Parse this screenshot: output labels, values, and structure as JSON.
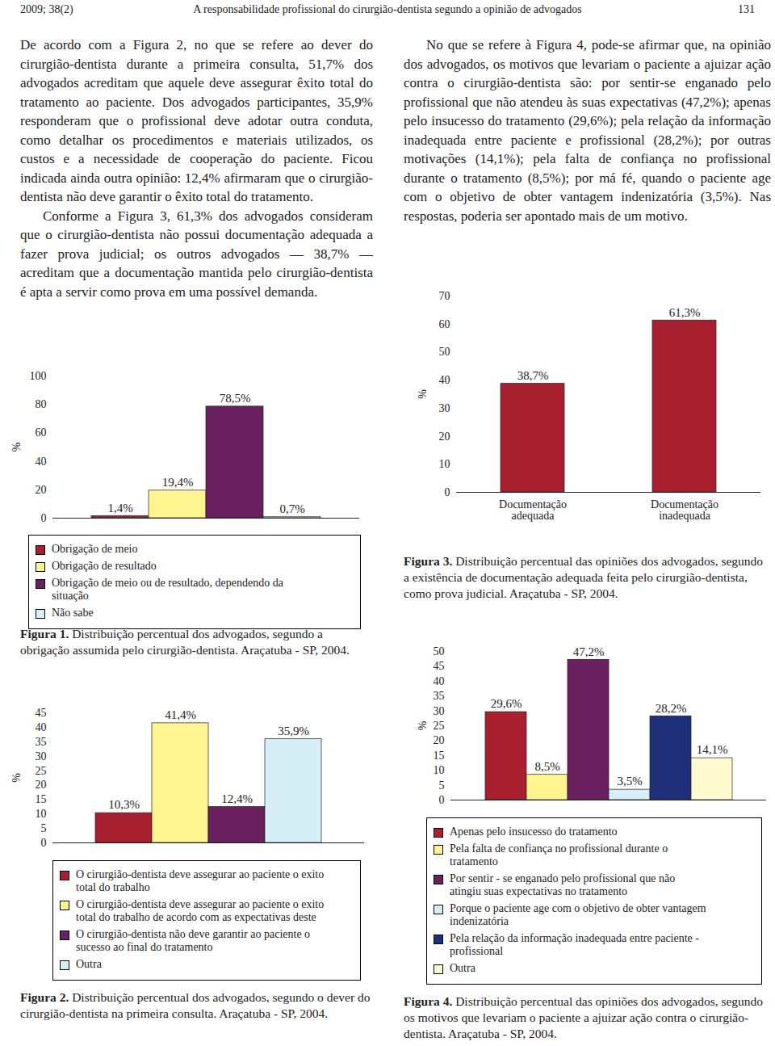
{
  "header": {
    "left": "2009; 38(2)",
    "center": "A responsabilidade profissional do cirurgião-dentista segundo a opinião de advogados",
    "right": "131"
  },
  "text": {
    "left_column": [
      "De acordo com a Figura 2, no que se refere ao dever do cirurgião-dentista durante a primeira consulta, 51,7% dos advogados acreditam que aquele deve assegurar êxito total do tratamento ao paciente. Dos advogados participantes, 35,9% responderam que o profissional deve adotar outra conduta, como detalhar os procedimentos e materiais utilizados, os custos e a necessidade de cooperação do paciente. Ficou indicada ainda outra opinião: 12,4% afirmaram que o cirurgião-dentista não deve garantir o êxito total do tratamento.",
      "Conforme a Figura 3, 61,3% dos advogados consideram que o cirurgião-dentista não possui documentação adequada a fazer prova judicial; os outros advogados — 38,7% — acreditam que a documentação mantida pelo cirurgião-dentista é apta a servir como prova em uma possível demanda."
    ],
    "right_column": [
      "No que se refere à Figura 4, pode-se afirmar que, na opinião dos advogados, os motivos que levariam o paciente a ajuizar ação contra o cirurgião-dentista são: por sentir-se enganado pelo profissional que não atendeu às suas expectativas (47,2%); apenas pelo insucesso do tratamento (29,6%); pela relação da informação inadequada entre paciente e profissional (28,2%); por outras motivações (14,1%); pela falta de confiança no profissional durante o tratamento (8,5%); por má fé, quando o paciente age com o objetivo de obter vantagem indenizatória (3,5%). Nas respostas, poderia ser apontado mais de um motivo."
    ]
  },
  "chart_data": [
    {
      "type": "bar",
      "figure_label": "Figura 1.",
      "title": "Distribuição percentual dos advogados, segundo a obrigação assumida pelo cirurgião-dentista. Araçatuba - SP, 2004.",
      "y_label": "%",
      "categories": [
        "Obrigação de meio",
        "Obrigação de resultado",
        "Obrigação de meio ou de resultado, dependendo da situação",
        "Não sabe"
      ],
      "values": [
        1.4,
        19.4,
        78.5,
        0.7
      ],
      "value_labels": [
        "1,4%",
        "19,4%",
        "78,5%",
        "0,7%"
      ],
      "colors": [
        "#a8202f",
        "#fff48f",
        "#6a1f5f",
        "#d6eef5"
      ],
      "ylim": [
        0,
        100
      ],
      "yticks": [
        0,
        20,
        40,
        60,
        80,
        100
      ],
      "data_labels": true,
      "tick_labels": "y",
      "legend": "bottom"
    },
    {
      "type": "bar",
      "figure_label": "Figura 2.",
      "title": "Distribuição percentual dos advogados, segundo o dever do cirurgião-dentista na primeira consulta. Araçatuba - SP, 2004.",
      "y_label": "%",
      "categories": [
        "O cirurgião-dentista deve assegurar ao paciente o exito total do trabalho",
        "O cirurgião-dentista deve assegurar ao paciente o exito total do trabalho de acordo com as expectativas deste",
        "O cirurgião-dentista  não deve garantir ao paciente o sucesso ao final do tratamento",
        "Outra"
      ],
      "values": [
        10.3,
        41.4,
        12.4,
        35.9
      ],
      "value_labels": [
        "10,3%",
        "41,4%",
        "12,4%",
        "35,9%"
      ],
      "colors": [
        "#a8202f",
        "#fff48f",
        "#6a1f5f",
        "#d6eef5"
      ],
      "ylim": [
        0,
        45
      ],
      "yticks": [
        0,
        5,
        10,
        15,
        20,
        25,
        30,
        35,
        40,
        45
      ],
      "data_labels": true,
      "tick_labels": "y",
      "legend": "bottom"
    },
    {
      "type": "bar",
      "figure_label": "Figura 3.",
      "title": "Distribuição percentual das opiniões dos advogados, segundo a existência de documentação adequada feita pelo cirurgião-dentista, como prova judicial. Araçatuba - SP, 2004.",
      "y_label": "%",
      "categories": [
        "Documentação adequada",
        "Documentação inadequada"
      ],
      "values": [
        38.7,
        61.3
      ],
      "value_labels": [
        "38,7%",
        "61,3%"
      ],
      "color": "#a8202f",
      "ylim": [
        0,
        70
      ],
      "yticks": [
        0,
        10,
        20,
        30,
        40,
        50,
        60,
        70
      ],
      "data_labels": true,
      "tick_labels": true
    },
    {
      "type": "bar",
      "figure_label": "Figura 4.",
      "title": "Distribuição percentual das opiniões dos advogados, segundo os motivos que levariam o paciente a ajuizar ação contra o cirurgião-dentista. Araçatuba - SP, 2004.",
      "y_label": "%",
      "categories": [
        "Apenas pelo insucesso do tratamento",
        "Pela falta de confiança no profissional durante o tratamento",
        "Por sentir - se enganado pelo profissional que não atingiu suas expectativas no tratamento",
        "Porque o paciente age com o objetivo de obter vantagem indenizatória",
        "Pela relação da informação inadequada entre paciente - profissional",
        "Outra"
      ],
      "values": [
        29.6,
        8.5,
        47.2,
        3.5,
        28.2,
        14.1
      ],
      "value_labels": [
        "29,6%",
        "8,5%",
        "47,2%",
        "3,5%",
        "28,2%",
        "14,1%"
      ],
      "colors": [
        "#a8202f",
        "#fff48f",
        "#6a1f5f",
        "#d6eef5",
        "#1f2f7a",
        "#fffbd0"
      ],
      "ylim": [
        0,
        50
      ],
      "yticks": [
        0,
        5,
        10,
        15,
        20,
        25,
        30,
        35,
        40,
        45,
        50
      ],
      "data_labels": true,
      "tick_labels": "y",
      "legend": "bottom"
    }
  ]
}
